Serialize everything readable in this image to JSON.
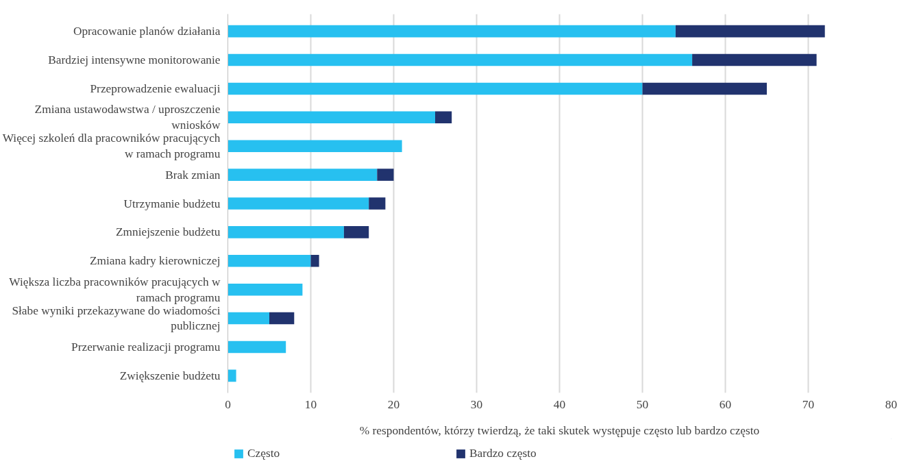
{
  "chart_data": {
    "type": "bar",
    "orientation": "horizontal",
    "stacked": true,
    "categories": [
      "Opracowanie planów działania",
      "Bardziej intensywne monitorowanie",
      "Przeprowadzenie ewaluacji",
      "Zmiana ustawodawstwa / uproszczenie wniosków",
      "Więcej szkoleń dla pracowników pracujących w ramach programu",
      "Brak zmian",
      "Utrzymanie budżetu",
      "Zmniejszenie budżetu",
      "Zmiana kadry kierowniczej",
      "Większa liczba pracowników pracujących w ramach programu",
      "Słabe wyniki przekazywane do wiadomości publicznej",
      "Przerwanie realizacji programu",
      "Zwiększenie budżetu"
    ],
    "series": [
      {
        "name": "Często",
        "color": "#27c0f0",
        "values": [
          54,
          56,
          50,
          25,
          21,
          18,
          17,
          14,
          10,
          9,
          5,
          7,
          1
        ]
      },
      {
        "name": "Bardzo często",
        "color": "#21336e",
        "values": [
          18,
          15,
          15,
          2,
          null,
          2,
          2,
          3,
          1,
          null,
          3,
          null,
          null
        ]
      }
    ],
    "xlabel": "% respondentów, którzy twierdzą, że taki skutek występuje często lub bardzo często",
    "xlim": [
      0,
      80
    ],
    "xticks": [
      0,
      10,
      20,
      30,
      40,
      50,
      60,
      70,
      80
    ],
    "grid": "x",
    "legend": "bottom"
  }
}
